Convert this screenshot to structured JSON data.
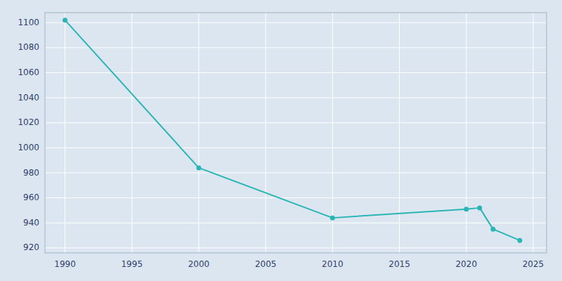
{
  "chart_data": {
    "type": "line",
    "x": [
      1990,
      2000,
      2010,
      2020,
      2021,
      2022,
      2024
    ],
    "values": [
      1102,
      984,
      944,
      951,
      952,
      935,
      926
    ],
    "color": "#2ab5b5",
    "marker": "circle",
    "xlim": [
      1988.5,
      2026
    ],
    "ylim": [
      916,
      1108
    ],
    "xticks": [
      1990,
      1995,
      2000,
      2005,
      2010,
      2015,
      2020,
      2025
    ],
    "yticks": [
      920,
      940,
      960,
      980,
      1000,
      1020,
      1040,
      1060,
      1080,
      1100
    ],
    "grid": true
  }
}
